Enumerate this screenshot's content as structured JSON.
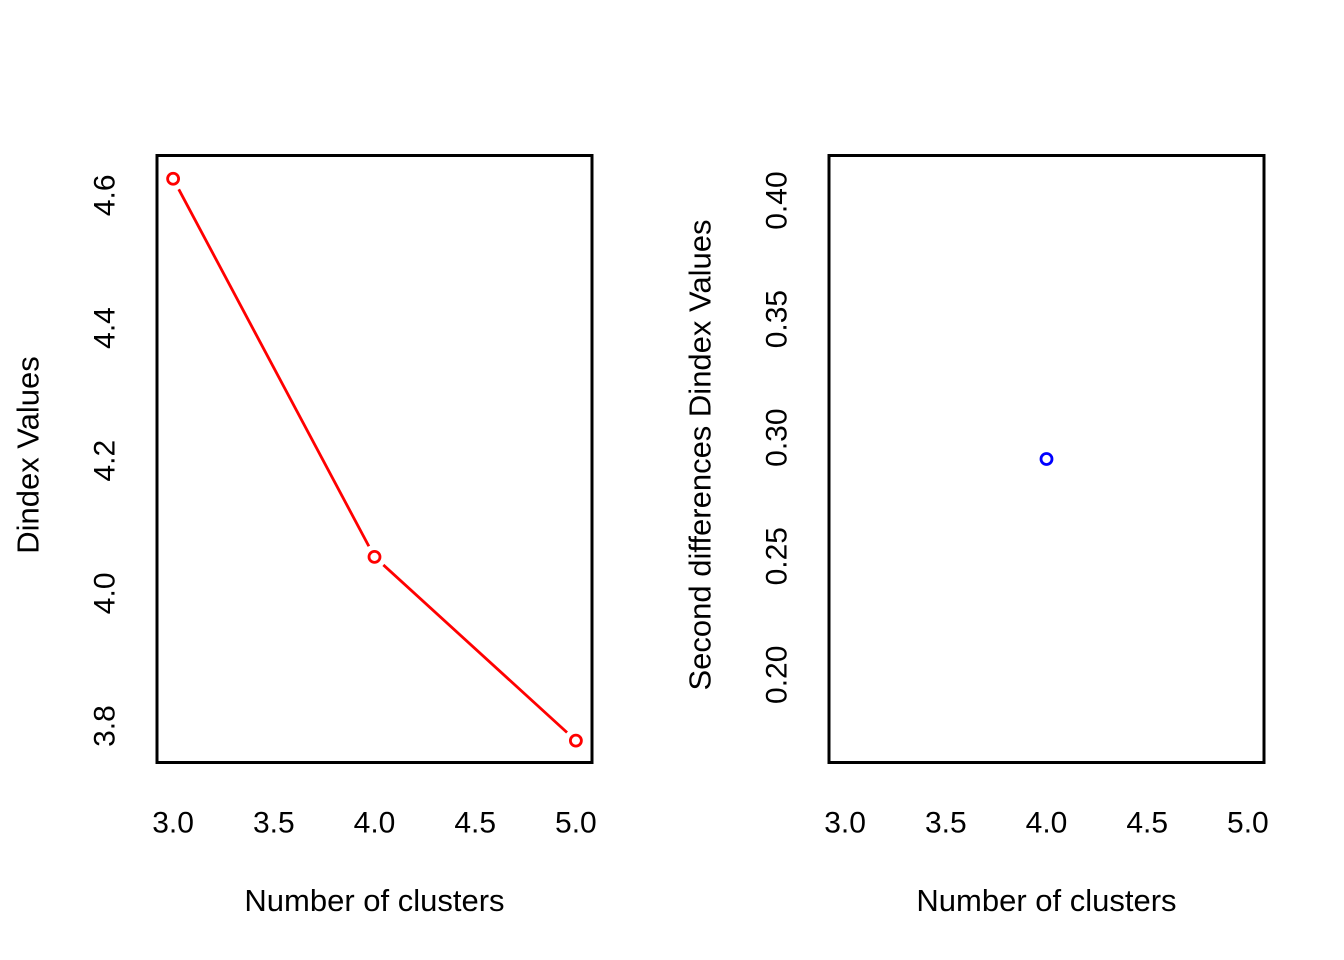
{
  "figure": {
    "background": "#ffffff",
    "text_color": "#000000"
  },
  "chart_data": [
    {
      "type": "line",
      "title": "",
      "xlabel": "Number of clusters",
      "ylabel": "Dindex Values",
      "x": [
        3,
        4,
        5
      ],
      "series": [
        {
          "name": "Dindex",
          "values": [
            4.625,
            4.055,
            3.778
          ]
        }
      ],
      "color": "#ff0000",
      "marker": "open-circle",
      "line_between_points": true,
      "grid": false,
      "legend": "none",
      "xlim": [
        2.92,
        5.08
      ],
      "ylim": [
        3.745,
        4.66
      ],
      "x_ticks": [
        {
          "v": 3.0,
          "label": "3.0"
        },
        {
          "v": 3.5,
          "label": "3.5"
        },
        {
          "v": 4.0,
          "label": "4.0"
        },
        {
          "v": 4.5,
          "label": "4.5"
        },
        {
          "v": 5.0,
          "label": "5.0"
        }
      ],
      "y_ticks": [
        {
          "v": 3.8,
          "label": "3.8"
        },
        {
          "v": 4.0,
          "label": "4.0"
        },
        {
          "v": 4.2,
          "label": "4.2"
        },
        {
          "v": 4.4,
          "label": "4.4"
        },
        {
          "v": 4.6,
          "label": "4.6"
        }
      ]
    },
    {
      "type": "scatter",
      "title": "",
      "xlabel": "Number of clusters",
      "ylabel": "Second differences Dindex Values",
      "x": [
        4
      ],
      "series": [
        {
          "name": "Second differences Dindex",
          "values": [
            0.291
          ]
        }
      ],
      "color": "#0000ff",
      "marker": "open-circle",
      "line_between_points": false,
      "grid": false,
      "legend": "none",
      "xlim": [
        2.92,
        5.08
      ],
      "ylim": [
        0.163,
        0.419
      ],
      "x_ticks": [
        {
          "v": 3.0,
          "label": "3.0"
        },
        {
          "v": 3.5,
          "label": "3.5"
        },
        {
          "v": 4.0,
          "label": "4.0"
        },
        {
          "v": 4.5,
          "label": "4.5"
        },
        {
          "v": 5.0,
          "label": "5.0"
        }
      ],
      "y_ticks": [
        {
          "v": 0.2,
          "label": "0.20"
        },
        {
          "v": 0.25,
          "label": "0.25"
        },
        {
          "v": 0.3,
          "label": "0.30"
        },
        {
          "v": 0.35,
          "label": "0.35"
        },
        {
          "v": 0.4,
          "label": "0.40"
        }
      ]
    }
  ]
}
